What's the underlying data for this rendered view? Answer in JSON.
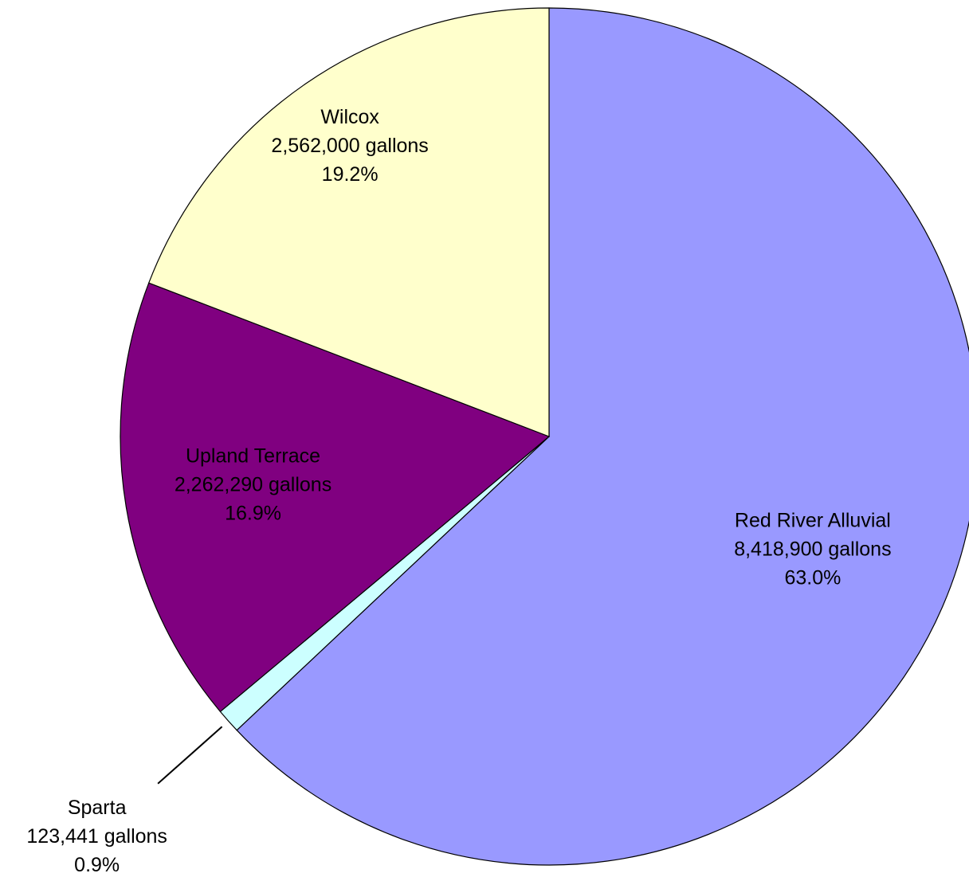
{
  "chart_data": {
    "type": "pie",
    "categories": [
      "Red River Alluvial",
      "Sparta",
      "Upland Terrace",
      "Wilcox"
    ],
    "values": [
      8418900,
      123441,
      2262290,
      2562000
    ],
    "value_labels": [
      "8,418,900 gallons",
      "123,441 gallons",
      "2,262,290 gallons",
      "2,562,000 gallons"
    ],
    "percentages": [
      63.0,
      0.9,
      16.9,
      19.2
    ],
    "percentage_labels": [
      "63.0%",
      "0.9%",
      "16.9%",
      "19.2%"
    ],
    "colors": [
      "#9999ff",
      "#ccffff",
      "#800080",
      "#ffffcc"
    ]
  }
}
